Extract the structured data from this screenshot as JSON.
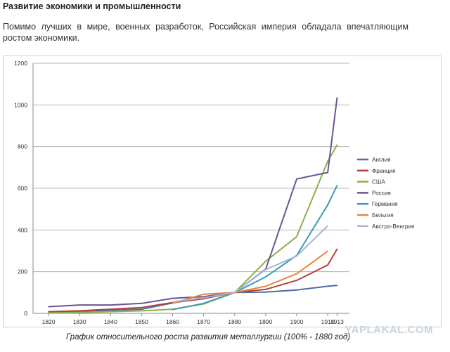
{
  "article": {
    "heading": "Развитие экономики и промышленности",
    "paragraph": "Помимо лучших в мире, военных разработок, Российская империя обладала впечатляющим ростом экономики.",
    "caption": "График относительного роста развития металлургии (100% - 1880 год)",
    "watermark": "YAPLAKAL.COM"
  },
  "chart_data": {
    "type": "line",
    "title": "",
    "xlabel": "",
    "ylabel": "",
    "xlim": [
      1815,
      1917
    ],
    "ylim": [
      0,
      1200
    ],
    "x_ticks": [
      1820,
      1830,
      1840,
      1850,
      1860,
      1870,
      1880,
      1890,
      1900,
      1910,
      1913
    ],
    "y_ticks": [
      0,
      200,
      400,
      600,
      800,
      1000,
      1200
    ],
    "grid": "horizontal",
    "legend": "right",
    "series": [
      {
        "name": "Англия",
        "color": "#4a6fa5",
        "points": [
          [
            1820,
            5
          ],
          [
            1830,
            10
          ],
          [
            1840,
            15
          ],
          [
            1850,
            20
          ],
          [
            1860,
            50
          ],
          [
            1870,
            75
          ],
          [
            1880,
            100
          ],
          [
            1890,
            102
          ],
          [
            1900,
            112
          ],
          [
            1910,
            130
          ],
          [
            1913,
            134
          ]
        ]
      },
      {
        "name": "Франция",
        "color": "#b5403c",
        "points": [
          [
            1820,
            8
          ],
          [
            1830,
            12
          ],
          [
            1840,
            20
          ],
          [
            1850,
            28
          ],
          [
            1860,
            52
          ],
          [
            1870,
            70
          ],
          [
            1880,
            100
          ],
          [
            1890,
            115
          ],
          [
            1900,
            158
          ],
          [
            1910,
            232
          ],
          [
            1913,
            308
          ]
        ]
      },
      {
        "name": "США",
        "color": "#8db04c",
        "points": [
          [
            1820,
            2
          ],
          [
            1830,
            4
          ],
          [
            1840,
            8
          ],
          [
            1850,
            12
          ],
          [
            1860,
            20
          ],
          [
            1870,
            45
          ],
          [
            1880,
            100
          ],
          [
            1890,
            250
          ],
          [
            1900,
            368
          ],
          [
            1910,
            730
          ],
          [
            1913,
            808
          ]
        ]
      },
      {
        "name": "Россия",
        "color": "#6e5294",
        "points": [
          [
            1820,
            32
          ],
          [
            1830,
            40
          ],
          [
            1840,
            40
          ],
          [
            1850,
            48
          ],
          [
            1860,
            72
          ],
          [
            1870,
            80
          ],
          [
            1880,
            100
          ],
          [
            1890,
            212
          ],
          [
            1900,
            645
          ],
          [
            1910,
            676
          ],
          [
            1913,
            1034
          ]
        ]
      },
      {
        "name": "Германия",
        "color": "#3b9bb3",
        "points": [
          [
            1860,
            18
          ],
          [
            1870,
            48
          ],
          [
            1880,
            100
          ],
          [
            1890,
            175
          ],
          [
            1900,
            278
          ],
          [
            1910,
            520
          ],
          [
            1913,
            613
          ]
        ]
      },
      {
        "name": "Бельгия",
        "color": "#e5883a",
        "points": [
          [
            1860,
            48
          ],
          [
            1870,
            92
          ],
          [
            1880,
            100
          ],
          [
            1890,
            130
          ],
          [
            1900,
            190
          ],
          [
            1910,
            298
          ]
        ]
      },
      {
        "name": "Австро-Венгрия",
        "color": "#a7b6d4",
        "points": [
          [
            1860,
            55
          ],
          [
            1870,
            75
          ],
          [
            1880,
            100
          ],
          [
            1890,
            210
          ],
          [
            1900,
            275
          ],
          [
            1910,
            420
          ]
        ]
      }
    ]
  }
}
